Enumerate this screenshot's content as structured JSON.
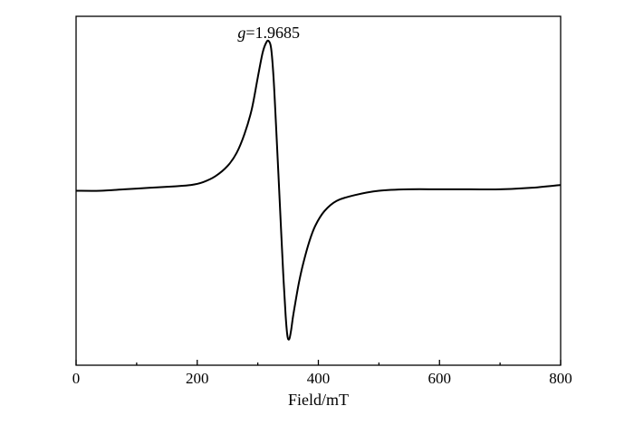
{
  "chart_data": {
    "type": "line",
    "title": "",
    "xlabel": "Field/mT",
    "ylabel": "",
    "xlim": [
      0,
      800
    ],
    "ylim": [
      -1.2,
      1.2
    ],
    "x_ticks": [
      "0",
      "200",
      "400",
      "600",
      "800"
    ],
    "grid": false,
    "legend": "none",
    "annotations": [
      {
        "prefix": "g",
        "text": "=1.9685",
        "x": 318,
        "y": 1.0
      }
    ],
    "series": [
      {
        "color": "#000000",
        "x": [
          0,
          40,
          80,
          120,
          160,
          190,
          210,
          230,
          250,
          265,
          278,
          290,
          300,
          308,
          314,
          318,
          322,
          326,
          330,
          334,
          338,
          342,
          346,
          349,
          352,
          355,
          358,
          362,
          368,
          375,
          385,
          395,
          410,
          430,
          460,
          500,
          550,
          600,
          650,
          700,
          750,
          800
        ],
        "y": [
          0.0,
          0.0,
          0.01,
          0.02,
          0.03,
          0.04,
          0.06,
          0.1,
          0.17,
          0.26,
          0.39,
          0.56,
          0.78,
          0.95,
          1.02,
          1.03,
          0.98,
          0.78,
          0.46,
          0.12,
          -0.23,
          -0.57,
          -0.86,
          -1.0,
          -1.02,
          -0.96,
          -0.87,
          -0.77,
          -0.63,
          -0.5,
          -0.35,
          -0.24,
          -0.14,
          -0.07,
          -0.03,
          0.0,
          0.01,
          0.01,
          0.01,
          0.01,
          0.02,
          0.04
        ]
      }
    ]
  }
}
